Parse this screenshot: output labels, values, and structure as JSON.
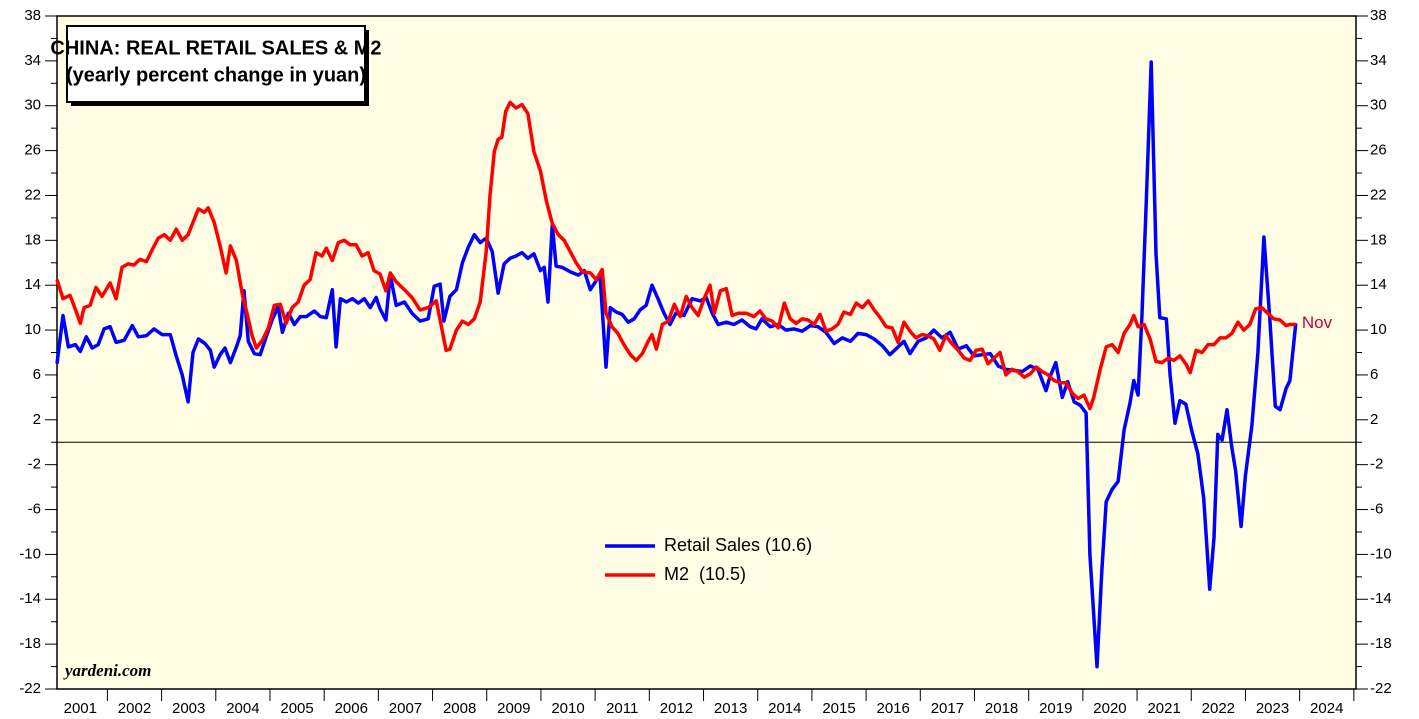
{
  "chart_data": {
    "type": "line",
    "title": "CHINA: REAL RETAIL SALES & M2",
    "subtitle": "(yearly percent change in yuan)",
    "annotations": [
      "Nov",
      "yardeni.com"
    ],
    "xlim": [
      2001.07,
      2025.04
    ],
    "xticks": [
      {
        "value": 2001.5,
        "label": "2001"
      },
      {
        "value": 2002.5,
        "label": "2002"
      },
      {
        "value": 2003.5,
        "label": "2003"
      },
      {
        "value": 2004.5,
        "label": "2004"
      },
      {
        "value": 2005.5,
        "label": "2005"
      },
      {
        "value": 2006.5,
        "label": "2006"
      },
      {
        "value": 2007.5,
        "label": "2007"
      },
      {
        "value": 2008.5,
        "label": "2008"
      },
      {
        "value": 2009.5,
        "label": "2009"
      },
      {
        "value": 2010.5,
        "label": "2010"
      },
      {
        "value": 2011.5,
        "label": "2011"
      },
      {
        "value": 2012.5,
        "label": "2012"
      },
      {
        "value": 2013.5,
        "label": "2013"
      },
      {
        "value": 2014.5,
        "label": "2014"
      },
      {
        "value": 2015.5,
        "label": "2015"
      },
      {
        "value": 2016.5,
        "label": "2016"
      },
      {
        "value": 2017.5,
        "label": "2017"
      },
      {
        "value": 2018.5,
        "label": "2018"
      },
      {
        "value": 2019.5,
        "label": "2019"
      },
      {
        "value": 2020.5,
        "label": "2020"
      },
      {
        "value": 2021.5,
        "label": "2021"
      },
      {
        "value": 2022.5,
        "label": "2022"
      },
      {
        "value": 2023.5,
        "label": "2023"
      },
      {
        "value": 2024.5,
        "label": "2024"
      }
    ],
    "ylim": [
      -22,
      38
    ],
    "yticks": [
      38,
      34,
      30,
      26,
      22,
      18,
      14,
      10,
      6,
      2,
      -2,
      -6,
      -10,
      -14,
      -18,
      -22
    ],
    "series": [
      {
        "name": "Retail Sales (10.6)",
        "color": "#0000ff",
        "x": [
          2001.07,
          2001.18,
          2001.28,
          2001.41,
          2001.5,
          2001.61,
          2001.72,
          2001.83,
          2001.94,
          2002.05,
          2002.16,
          2002.31,
          2002.46,
          2002.57,
          2002.72,
          2002.86,
          2003.01,
          2003.16,
          2003.27,
          2003.38,
          2003.49,
          2003.58,
          2003.68,
          2003.8,
          2003.9,
          2003.97,
          2004.08,
          2004.17,
          2004.27,
          2004.38,
          2004.45,
          2004.52,
          2004.6,
          2004.71,
          2004.82,
          2004.93,
          2005.04,
          2005.15,
          2005.23,
          2005.34,
          2005.45,
          2005.56,
          2005.67,
          2005.82,
          2005.93,
          2006.04,
          2006.15,
          2006.22,
          2006.3,
          2006.41,
          2006.52,
          2006.63,
          2006.74,
          2006.85,
          2006.96,
          2007.03,
          2007.14,
          2007.22,
          2007.33,
          2007.48,
          2007.62,
          2007.77,
          2007.92,
          2008.03,
          2008.14,
          2008.21,
          2008.32,
          2008.44,
          2008.55,
          2008.66,
          2008.77,
          2008.88,
          2008.99,
          2009.1,
          2009.21,
          2009.32,
          2009.43,
          2009.54,
          2009.65,
          2009.76,
          2009.87,
          2009.99,
          2010.06,
          2010.13,
          2010.21,
          2010.28,
          2010.39,
          2010.54,
          2010.69,
          2010.8,
          2010.91,
          2011.02,
          2011.09,
          2011.2,
          2011.28,
          2011.39,
          2011.5,
          2011.61,
          2011.72,
          2011.83,
          2011.94,
          2012.05,
          2012.16,
          2012.27,
          2012.38,
          2012.49,
          2012.64,
          2012.79,
          2012.94,
          2013.05,
          2013.16,
          2013.27,
          2013.42,
          2013.56,
          2013.71,
          2013.86,
          2013.97,
          2014.08,
          2014.23,
          2014.38,
          2014.52,
          2014.67,
          2014.82,
          2014.97,
          2015.11,
          2015.26,
          2015.41,
          2015.56,
          2015.71,
          2015.85,
          2016.0,
          2016.15,
          2016.3,
          2016.44,
          2016.59,
          2016.7,
          2016.81,
          2016.96,
          2017.11,
          2017.25,
          2017.4,
          2017.55,
          2017.7,
          2017.85,
          2017.99,
          2018.14,
          2018.29,
          2018.44,
          2018.58,
          2018.73,
          2018.88,
          2019.03,
          2019.17,
          2019.32,
          2019.39,
          2019.5,
          2019.62,
          2019.72,
          2019.84,
          2019.95,
          2020.06,
          2020.13,
          2020.26,
          2020.35,
          2020.43,
          2020.54,
          2020.65,
          2020.76,
          2020.87,
          2020.94,
          2021.02,
          2021.09,
          2021.17,
          2021.26,
          2021.35,
          2021.42,
          2021.54,
          2021.61,
          2021.7,
          2021.79,
          2021.9,
          2022.01,
          2022.12,
          2022.23,
          2022.34,
          2022.42,
          2022.49,
          2022.57,
          2022.66,
          2022.75,
          2022.82,
          2022.92,
          2023.0,
          2023.12,
          2023.23,
          2023.34,
          2023.45,
          2023.55,
          2023.64,
          2023.75,
          2023.82,
          2023.93
        ],
        "values": [
          7.0,
          11.3,
          8.5,
          8.7,
          8.1,
          9.4,
          8.4,
          8.7,
          10.1,
          10.3,
          8.9,
          9.1,
          10.4,
          9.4,
          9.5,
          10.1,
          9.6,
          9.6,
          7.7,
          6.0,
          3.6,
          8.0,
          9.2,
          8.8,
          8.2,
          6.7,
          7.8,
          8.4,
          7.1,
          8.5,
          9.5,
          13.5,
          9.0,
          7.9,
          7.8,
          9.4,
          10.9,
          12.1,
          9.8,
          11.5,
          10.5,
          11.2,
          11.2,
          11.7,
          11.2,
          11.1,
          13.6,
          8.5,
          12.8,
          12.5,
          12.8,
          12.4,
          12.8,
          12.0,
          12.9,
          11.9,
          10.9,
          14.9,
          12.2,
          12.5,
          11.5,
          10.8,
          11.0,
          13.9,
          14.1,
          10.8,
          13.0,
          13.6,
          16.0,
          17.4,
          18.5,
          17.8,
          18.2,
          17.0,
          13.3,
          15.9,
          16.4,
          16.6,
          16.9,
          16.4,
          16.8,
          15.3,
          15.6,
          12.5,
          19.4,
          15.7,
          15.6,
          15.2,
          14.9,
          15.3,
          13.6,
          14.4,
          14.9,
          6.7,
          12.0,
          11.6,
          11.4,
          10.7,
          11.0,
          11.8,
          12.2,
          14.0,
          12.8,
          11.5,
          10.5,
          11.5,
          11.3,
          12.8,
          12.6,
          12.9,
          11.5,
          10.5,
          10.7,
          10.5,
          10.9,
          10.3,
          10.1,
          11.0,
          10.3,
          10.5,
          10.0,
          10.1,
          9.9,
          10.4,
          10.3,
          9.8,
          8.8,
          9.3,
          9.0,
          9.7,
          9.6,
          9.2,
          8.6,
          7.8,
          8.5,
          9.0,
          7.9,
          9.0,
          9.3,
          10.0,
          9.3,
          9.8,
          8.3,
          8.6,
          7.7,
          7.8,
          7.9,
          6.8,
          6.5,
          6.4,
          6.3,
          6.8,
          6.5,
          4.6,
          5.8,
          7.1,
          4.0,
          5.4,
          3.6,
          3.3,
          2.6,
          -10,
          -20.0,
          -11.5,
          -5.3,
          -4.2,
          -3.5,
          1.1,
          3.5,
          5.5,
          4.2,
          11.2,
          21.5,
          33.9,
          16.8,
          11.1,
          11.0,
          6.0,
          1.7,
          3.7,
          3.4,
          1.0,
          -1.0,
          -5.0,
          -13.1,
          -8.5,
          0.7,
          0.2,
          2.9,
          -0.5,
          -2.6,
          -7.5,
          -3.0,
          1.5,
          8.0,
          18.3,
          11.0,
          3.2,
          2.9,
          4.8,
          5.5,
          10.6
        ]
      },
      {
        "name": "M2  (10.5)",
        "color": "#ff0000",
        "x": [
          2001.07,
          2001.18,
          2001.31,
          2001.42,
          2001.5,
          2001.57,
          2001.68,
          2001.79,
          2001.9,
          2002.05,
          2002.16,
          2002.27,
          2002.38,
          2002.49,
          2002.6,
          2002.72,
          2002.83,
          2002.94,
          2003.05,
          2003.16,
          2003.27,
          2003.38,
          2003.49,
          2003.58,
          2003.68,
          2003.79,
          2003.86,
          2003.97,
          2004.08,
          2004.19,
          2004.27,
          2004.38,
          2004.49,
          2004.6,
          2004.67,
          2004.75,
          2004.86,
          2004.97,
          2005.08,
          2005.19,
          2005.3,
          2005.41,
          2005.52,
          2005.63,
          2005.74,
          2005.85,
          2005.96,
          2006.04,
          2006.15,
          2006.26,
          2006.37,
          2006.48,
          2006.59,
          2006.7,
          2006.81,
          2006.92,
          2007.03,
          2007.14,
          2007.22,
          2007.33,
          2007.48,
          2007.62,
          2007.77,
          2007.92,
          2008.07,
          2008.18,
          2008.25,
          2008.32,
          2008.44,
          2008.55,
          2008.66,
          2008.77,
          2008.88,
          2008.99,
          2009.06,
          2009.14,
          2009.21,
          2009.28,
          2009.35,
          2009.43,
          2009.54,
          2009.65,
          2009.76,
          2009.87,
          2009.99,
          2010.1,
          2010.21,
          2010.32,
          2010.43,
          2010.54,
          2010.65,
          2010.76,
          2010.91,
          2011.02,
          2011.13,
          2011.2,
          2011.31,
          2011.42,
          2011.53,
          2011.65,
          2011.76,
          2011.87,
          2011.98,
          2012.05,
          2012.13,
          2012.24,
          2012.35,
          2012.46,
          2012.57,
          2012.68,
          2012.79,
          2012.9,
          2013.01,
          2013.12,
          2013.2,
          2013.31,
          2013.42,
          2013.53,
          2013.64,
          2013.79,
          2013.93,
          2014.04,
          2014.15,
          2014.27,
          2014.38,
          2014.49,
          2014.6,
          2014.71,
          2014.82,
          2014.93,
          2015.04,
          2015.15,
          2015.26,
          2015.37,
          2015.48,
          2015.59,
          2015.71,
          2015.82,
          2015.93,
          2016.04,
          2016.15,
          2016.26,
          2016.37,
          2016.48,
          2016.59,
          2016.7,
          2016.81,
          2016.92,
          2017.03,
          2017.14,
          2017.25,
          2017.36,
          2017.47,
          2017.58,
          2017.7,
          2017.81,
          2017.92,
          2018.03,
          2018.14,
          2018.25,
          2018.36,
          2018.47,
          2018.58,
          2018.69,
          2018.8,
          2018.92,
          2019.03,
          2019.14,
          2019.25,
          2019.36,
          2019.47,
          2019.58,
          2019.69,
          2019.8,
          2019.91,
          2020.02,
          2020.13,
          2020.2,
          2020.32,
          2020.43,
          2020.54,
          2020.65,
          2020.76,
          2020.87,
          2020.94,
          2021.02,
          2021.13,
          2021.24,
          2021.35,
          2021.46,
          2021.57,
          2021.68,
          2021.79,
          2021.9,
          2021.98,
          2022.09,
          2022.2,
          2022.31,
          2022.42,
          2022.53,
          2022.64,
          2022.75,
          2022.86,
          2022.97,
          2023.08,
          2023.19,
          2023.3,
          2023.41,
          2023.52,
          2023.64,
          2023.75,
          2023.82,
          2023.93
        ],
        "values": [
          14.5,
          12.8,
          13.1,
          11.7,
          10.6,
          12.0,
          12.2,
          13.8,
          13.0,
          14.2,
          12.8,
          15.6,
          15.9,
          15.8,
          16.3,
          16.1,
          17.2,
          18.2,
          18.5,
          18.0,
          19.0,
          18.0,
          18.5,
          19.6,
          20.8,
          20.5,
          20.9,
          19.6,
          17.5,
          15.1,
          17.5,
          16.2,
          13.2,
          11.0,
          9.5,
          8.4,
          9.1,
          10.2,
          12.2,
          12.3,
          10.6,
          12.0,
          12.5,
          14.0,
          14.5,
          16.9,
          16.6,
          17.3,
          16.2,
          17.8,
          18.0,
          17.6,
          17.6,
          16.6,
          16.9,
          15.3,
          15.0,
          13.5,
          15.1,
          14.3,
          13.6,
          12.9,
          11.8,
          12.0,
          12.6,
          9.9,
          8.2,
          8.3,
          10.0,
          10.8,
          10.5,
          11.0,
          12.5,
          17.0,
          22.0,
          25.9,
          27.0,
          27.2,
          29.5,
          30.3,
          29.8,
          30.1,
          29.3,
          25.9,
          24.2,
          21.5,
          19.5,
          18.5,
          18.0,
          17.0,
          16.0,
          15.2,
          15.1,
          14.5,
          15.4,
          11.5,
          10.3,
          9.7,
          8.7,
          7.8,
          7.3,
          7.9,
          9.0,
          9.6,
          8.3,
          10.5,
          10.8,
          12.3,
          11.2,
          13.0,
          12.0,
          11.3,
          12.8,
          14.0,
          11.5,
          13.5,
          13.7,
          11.3,
          11.5,
          11.5,
          11.2,
          11.7,
          11.0,
          10.8,
          10.2,
          12.4,
          11.0,
          10.6,
          11.0,
          10.9,
          10.5,
          11.4,
          9.9,
          10.1,
          10.5,
          11.6,
          11.4,
          12.4,
          12.0,
          12.6,
          11.8,
          11.1,
          10.3,
          10.2,
          8.9,
          10.7,
          9.9,
          9.3,
          9.6,
          9.5,
          9.2,
          8.2,
          9.5,
          8.8,
          8.2,
          7.5,
          7.3,
          8.2,
          8.3,
          7.0,
          7.5,
          8.0,
          6.0,
          6.5,
          6.3,
          5.8,
          6.1,
          6.7,
          6.3,
          6.0,
          5.5,
          5.3,
          5.3,
          4.4,
          3.9,
          4.2,
          3.0,
          4.0,
          6.5,
          8.5,
          8.7,
          8.0,
          9.7,
          10.5,
          11.3,
          10.3,
          10.5,
          9.2,
          7.2,
          7.1,
          7.5,
          7.3,
          7.7,
          7.0,
          6.2,
          8.2,
          8.0,
          8.7,
          8.7,
          9.3,
          9.3,
          9.7,
          10.7,
          10.0,
          10.5,
          11.9,
          12.0,
          11.5,
          11.0,
          10.9,
          10.4,
          10.5,
          10.5
        ]
      }
    ]
  }
}
